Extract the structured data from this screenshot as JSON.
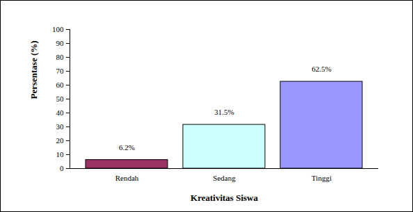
{
  "chart_data": {
    "type": "bar",
    "x_label": "Kreativitas Siswa",
    "y_label": "Persentase (%)",
    "categories": [
      "Rendah",
      "Sedang",
      "Tinggi"
    ],
    "values": [
      6.2,
      31.5,
      62.5
    ],
    "value_labels": [
      "6.2%",
      "31.5%",
      "62.5%"
    ],
    "colors": [
      "#993366",
      "#ccffff",
      "#9999ff"
    ],
    "ylim": [
      0,
      100
    ],
    "yticks": [
      0,
      10,
      20,
      30,
      40,
      50,
      60,
      70,
      80,
      90,
      100
    ],
    "grid": false,
    "data_labels": true
  }
}
